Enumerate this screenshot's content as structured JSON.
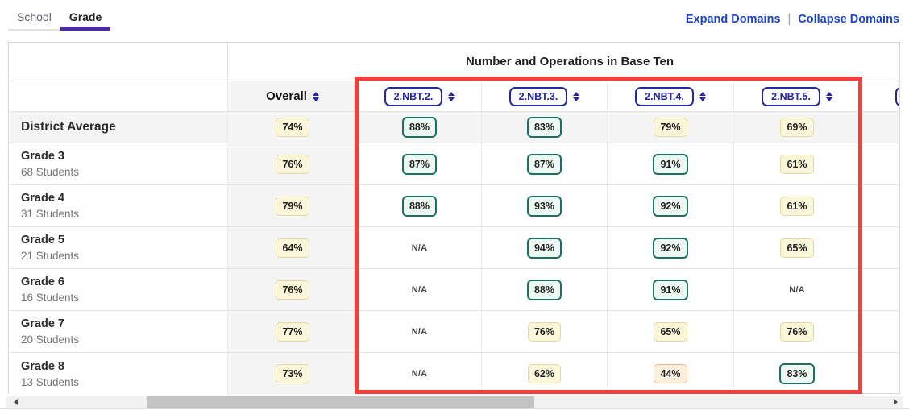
{
  "tabs": [
    {
      "label": "School",
      "active": false
    },
    {
      "label": "Grade",
      "active": true
    }
  ],
  "header": {
    "expand_label": "Expand Domains",
    "separator": "|",
    "collapse_label": "Collapse Domains"
  },
  "table": {
    "domain_header": "Number and Operations in Base Ten",
    "overall_label": "Overall",
    "skills": [
      "2.NBT.2.",
      "2.NBT.3.",
      "2.NBT.4.",
      "2.NBT.5."
    ],
    "rows": [
      {
        "name": "District Average",
        "students": "",
        "overall": "74%",
        "cells": [
          "88%",
          "83%",
          "79%",
          "69%"
        ]
      },
      {
        "name": "Grade 3",
        "students": "68 Students",
        "overall": "76%",
        "cells": [
          "87%",
          "87%",
          "91%",
          "61%"
        ]
      },
      {
        "name": "Grade 4",
        "students": "31 Students",
        "overall": "79%",
        "cells": [
          "88%",
          "93%",
          "92%",
          "61%"
        ]
      },
      {
        "name": "Grade 5",
        "students": "21 Students",
        "overall": "64%",
        "cells": [
          "N/A",
          "94%",
          "92%",
          "65%"
        ]
      },
      {
        "name": "Grade 6",
        "students": "16 Students",
        "overall": "76%",
        "cells": [
          "N/A",
          "88%",
          "91%",
          "N/A"
        ]
      },
      {
        "name": "Grade 7",
        "students": "20 Students",
        "overall": "77%",
        "cells": [
          "N/A",
          "76%",
          "65%",
          "76%"
        ]
      },
      {
        "name": "Grade 8",
        "students": "13 Students",
        "overall": "73%",
        "cells": [
          "N/A",
          "62%",
          "44%",
          "83%"
        ]
      }
    ]
  },
  "colors": {
    "tab_indicator": "#4c2ba3",
    "link_blue": "#1b43c4",
    "pill_navy": "#23269e",
    "badge_high_fill": "#edf8f2",
    "badge_high_border": "#1d6f63",
    "badge_mid_fill": "#fbf6d9",
    "badge_mid_border": "#e4d9a2",
    "badge_low_fill": "#fdf0e1",
    "badge_low_border": "#eab68a",
    "annotation_red": "#f4403a"
  },
  "annotation": {
    "type": "highlight-box",
    "around": "skill columns 2.NBT.2 through 2.NBT.5"
  }
}
